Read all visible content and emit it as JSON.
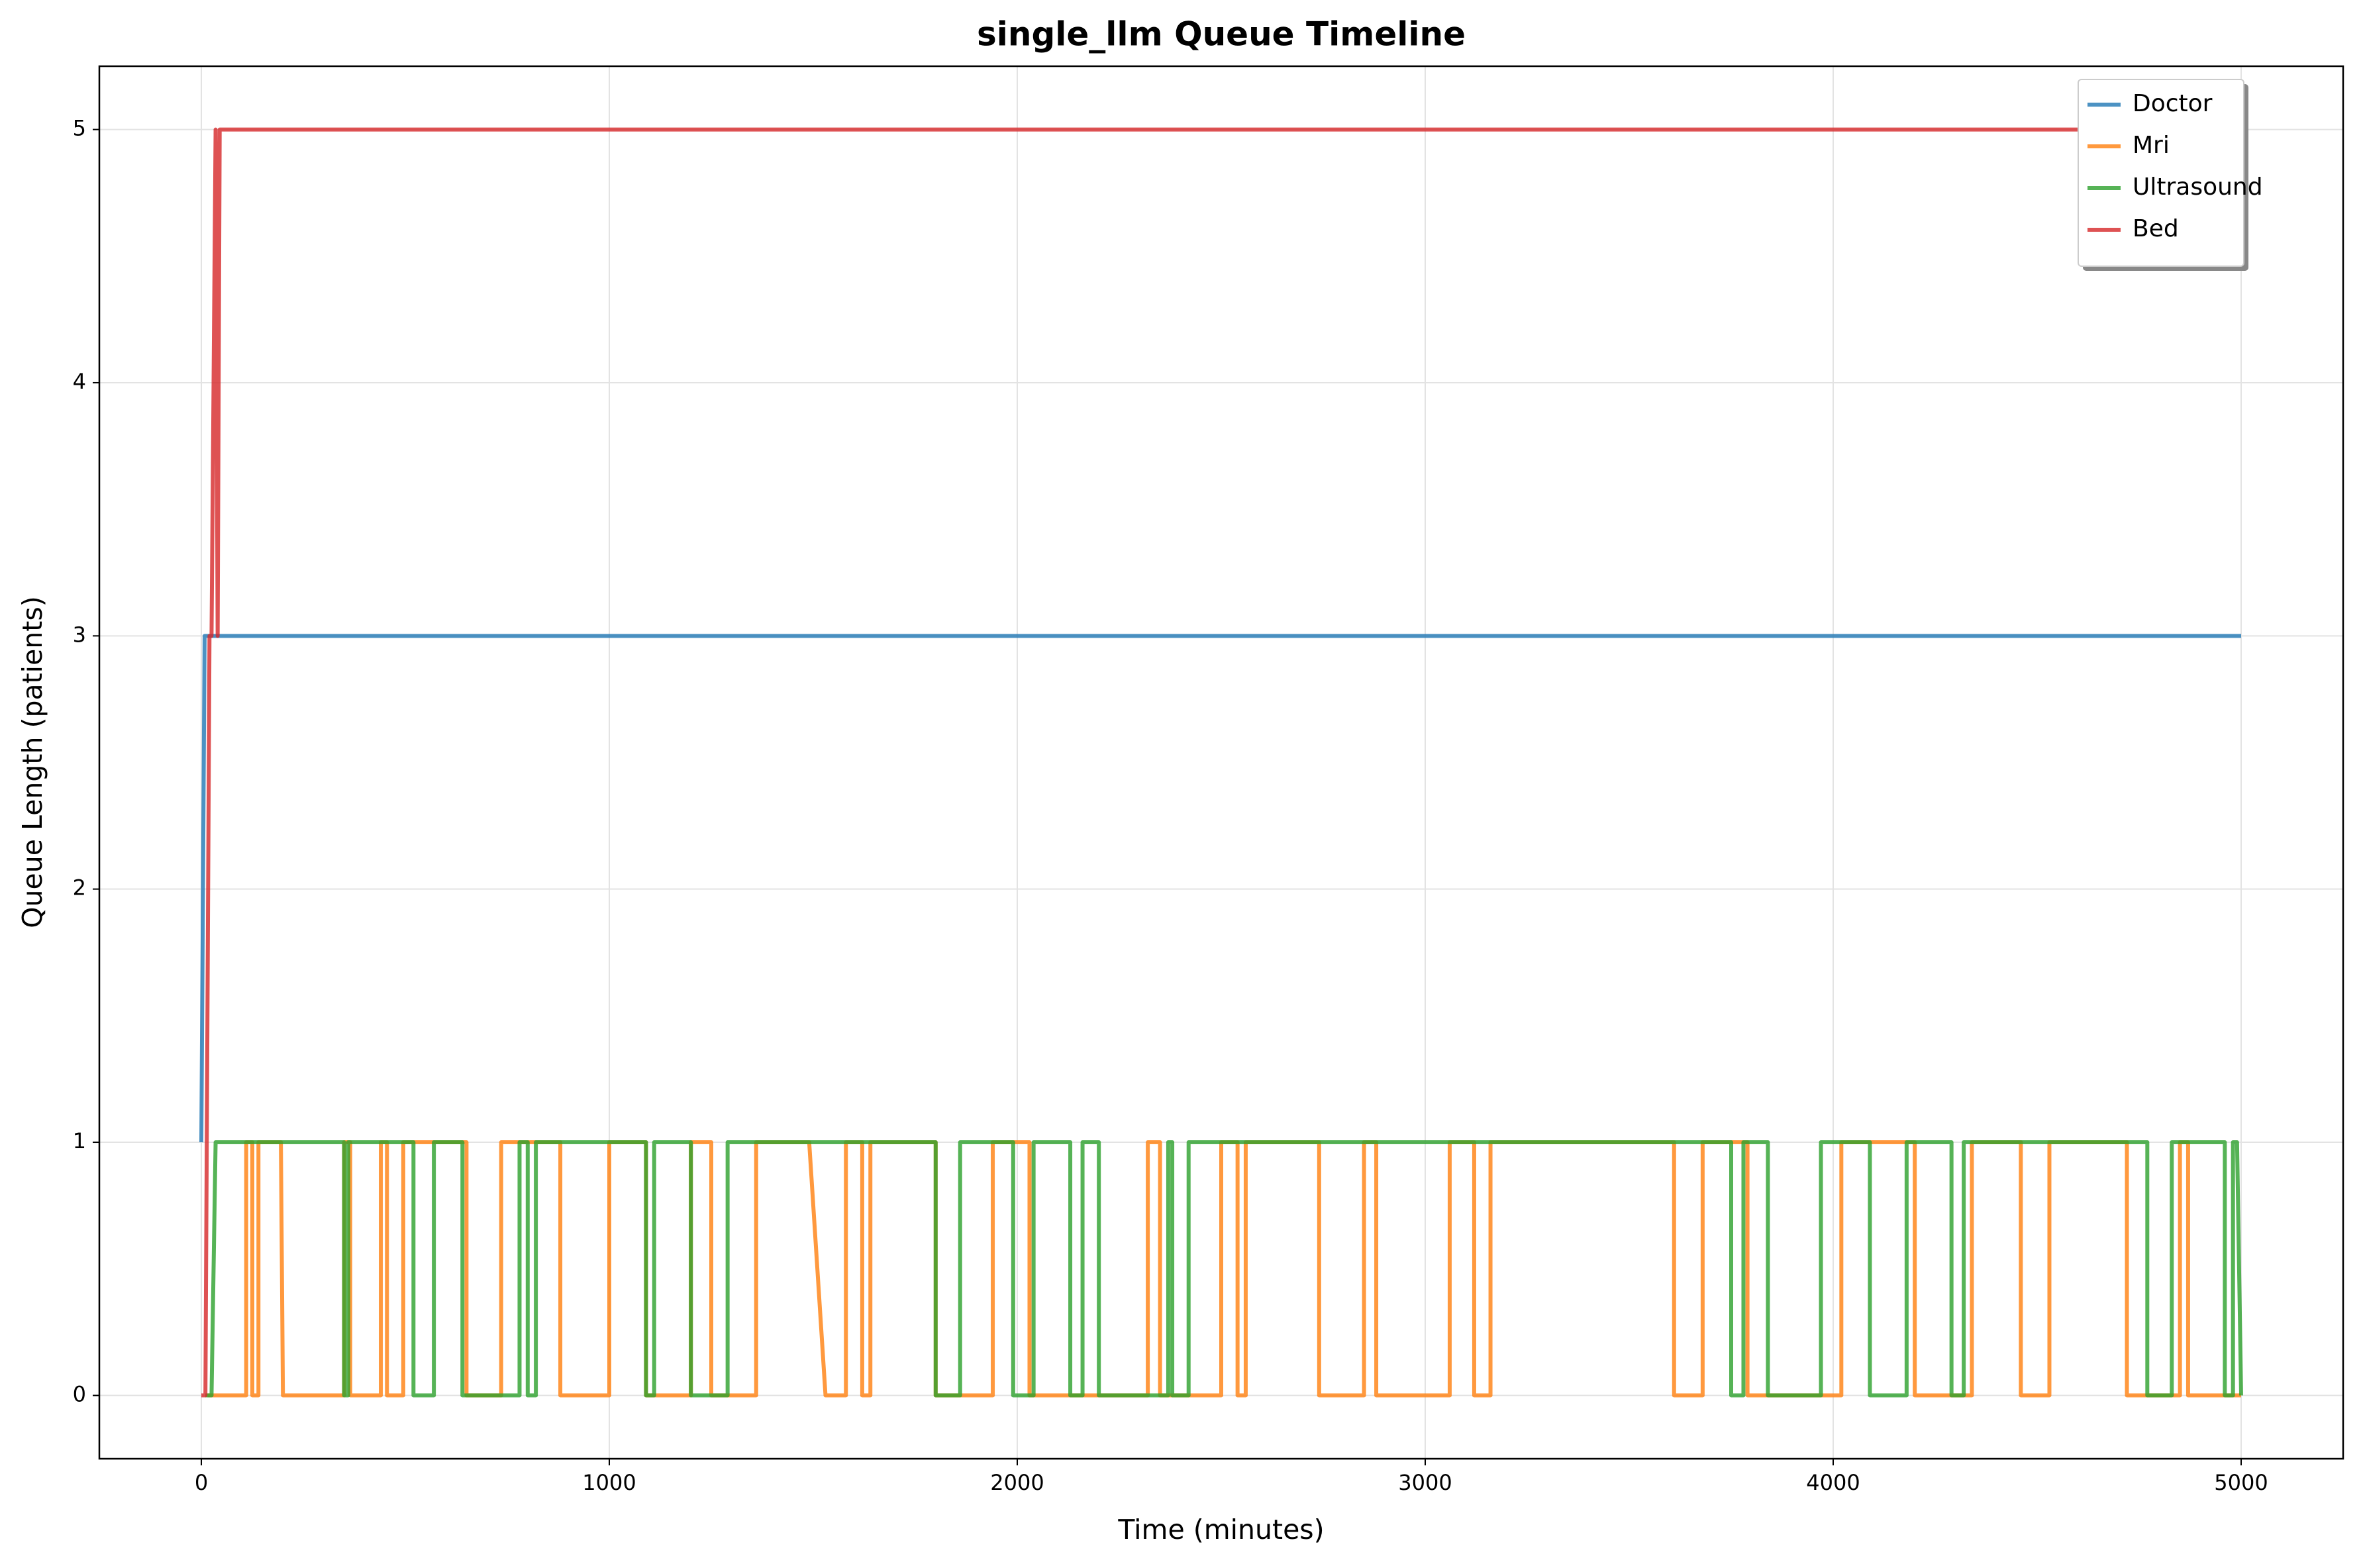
{
  "chart_data": {
    "type": "line",
    "title": "single_llm Queue Timeline",
    "x_label": "Time (minutes)",
    "y_label": "Queue Length (patients)",
    "xlim": [
      -250,
      5250
    ],
    "ylim": [
      -0.25,
      5.25
    ],
    "xticks": [
      0,
      1000,
      2000,
      3000,
      4000,
      5000
    ],
    "yticks": [
      0,
      1,
      2,
      3,
      4,
      5
    ],
    "grid": true,
    "legend": "upper right",
    "series": [
      {
        "name": "Doctor",
        "color": "#1f77b4",
        "x": [
          0,
          8,
          5000
        ],
        "values": [
          1,
          3,
          3
        ]
      },
      {
        "name": "Mri",
        "color": "#ff7f0e",
        "x": [
          15,
          110,
          110,
          125,
          125,
          140,
          140,
          195,
          200,
          350,
          350,
          365,
          365,
          440,
          440,
          455,
          455,
          495,
          495,
          650,
          650,
          735,
          735,
          880,
          880,
          1000,
          1000,
          1090,
          1090,
          1200,
          1200,
          1250,
          1250,
          1360,
          1360,
          1490,
          1530,
          1580,
          1580,
          1620,
          1620,
          1640,
          1640,
          1800,
          1800,
          1940,
          1940,
          2030,
          2030,
          2320,
          2320,
          2350,
          2350,
          2500,
          2500,
          2540,
          2540,
          2560,
          2560,
          2740,
          2740,
          2850,
          2850,
          2880,
          2880,
          3060,
          3060,
          3120,
          3120,
          3160,
          3160,
          3610,
          3610,
          3680,
          3680,
          3790,
          3790,
          4020,
          4020,
          4200,
          4200,
          4340,
          4340,
          4460,
          4460,
          4530,
          4530,
          4720,
          4720,
          4850,
          4850,
          4870,
          4870,
          5000
        ],
        "values": [
          0,
          0,
          1,
          1,
          0,
          0,
          1,
          1,
          0,
          0,
          1,
          1,
          0,
          0,
          1,
          1,
          0,
          0,
          1,
          1,
          0,
          0,
          1,
          1,
          0,
          0,
          1,
          1,
          0,
          0,
          1,
          1,
          0,
          0,
          1,
          1,
          0,
          0,
          1,
          1,
          0,
          0,
          1,
          1,
          0,
          0,
          1,
          1,
          0,
          0,
          1,
          1,
          0,
          0,
          1,
          1,
          0,
          0,
          1,
          1,
          0,
          0,
          1,
          1,
          0,
          0,
          1,
          1,
          0,
          0,
          1,
          1,
          0,
          0,
          1,
          1,
          0,
          0,
          1,
          1,
          0,
          0,
          1,
          1,
          0,
          0,
          1,
          1,
          0,
          0,
          1,
          1,
          0,
          0
        ]
      },
      {
        "name": "Ultrasound",
        "color": "#2ca02c",
        "x": [
          10,
          25,
          35,
          350,
          350,
          360,
          360,
          520,
          520,
          570,
          570,
          640,
          640,
          780,
          780,
          800,
          800,
          820,
          820,
          1090,
          1090,
          1110,
          1110,
          1200,
          1200,
          1290,
          1290,
          1800,
          1800,
          1860,
          1860,
          1990,
          1990,
          2040,
          2040,
          2130,
          2130,
          2160,
          2160,
          2200,
          2200,
          2370,
          2370,
          2380,
          2380,
          2420,
          2420,
          3750,
          3750,
          3780,
          3780,
          3840,
          3840,
          3970,
          3970,
          4090,
          4090,
          4180,
          4180,
          4290,
          4290,
          4320,
          4320,
          4770,
          4770,
          4830,
          4830,
          4960,
          4960,
          4980,
          4980,
          4990,
          5000
        ],
        "values": [
          0,
          0,
          1,
          1,
          0,
          0,
          1,
          1,
          0,
          0,
          1,
          1,
          0,
          0,
          1,
          1,
          0,
          0,
          1,
          1,
          0,
          0,
          1,
          1,
          0,
          0,
          1,
          1,
          0,
          0,
          1,
          1,
          0,
          0,
          1,
          1,
          0,
          0,
          1,
          1,
          0,
          0,
          1,
          1,
          0,
          0,
          1,
          1,
          0,
          0,
          1,
          1,
          0,
          0,
          1,
          1,
          0,
          0,
          1,
          1,
          0,
          0,
          1,
          1,
          0,
          0,
          1,
          1,
          0,
          0,
          1,
          1,
          0
        ]
      },
      {
        "name": "Bed",
        "color": "#d62728",
        "x": [
          0,
          10,
          20,
          25,
          30,
          35,
          40,
          45,
          5000
        ],
        "values": [
          0,
          0,
          3,
          3,
          4,
          5,
          3,
          5,
          5
        ]
      }
    ]
  }
}
